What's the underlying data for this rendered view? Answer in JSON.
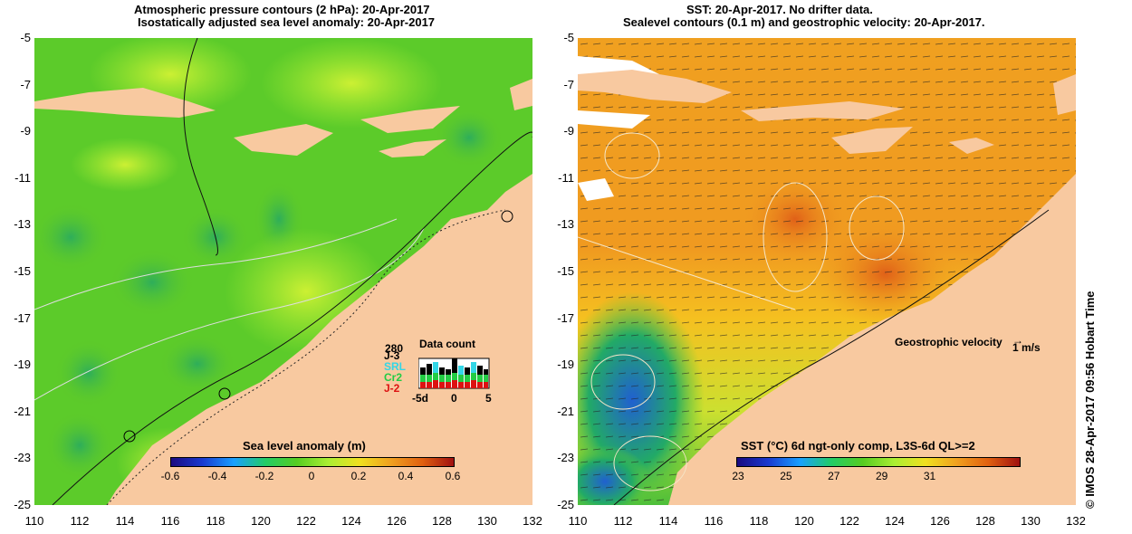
{
  "left_panel": {
    "title_line1": "Atmospheric pressure contours (2 hPa): 20-Apr-2017",
    "title_line2": "Isostatically adjusted sea level anomaly: 20-Apr-2017",
    "colorbar": {
      "label": "Sea level anomaly (m)",
      "ticks": [
        "-0.6",
        "-0.4",
        "-0.2",
        "0",
        "0.2",
        "0.4",
        "0.6"
      ]
    },
    "data_count": {
      "title": "Data count",
      "max_value": "280",
      "series": [
        {
          "name": "J-3",
          "color": "#000000"
        },
        {
          "name": "SRL",
          "color": "#33d6e6"
        },
        {
          "name": "Cr2",
          "color": "#22cc44"
        },
        {
          "name": "J-2",
          "color": "#dd1111"
        }
      ],
      "axis_ticks": [
        "-5d",
        "0",
        "5"
      ]
    }
  },
  "right_panel": {
    "title_line1": "SST: 20-Apr-2017. No drifter data.",
    "title_line2": "Sealevel contours (0.1 m) and geostrophic velocity: 20-Apr-2017.",
    "colorbar": {
      "label": "SST (°C) 6d ngt-only comp, L3S-6d QL>=2",
      "ticks": [
        "23",
        "25",
        "27",
        "29",
        "31"
      ]
    },
    "velocity_legend": {
      "label": "Geostrophic velocity",
      "scale": "1 m/s"
    }
  },
  "axes": {
    "y_ticks": [
      "-5",
      "-7",
      "-9",
      "-11",
      "-13",
      "-15",
      "-17",
      "-19",
      "-21",
      "-23",
      "-25"
    ],
    "x_ticks": [
      "110",
      "112",
      "114",
      "116",
      "118",
      "120",
      "122",
      "124",
      "126",
      "128",
      "130",
      "132"
    ]
  },
  "side_caption": "© IMOS 28-Apr-2017 09:56 Hobart Time",
  "colors": {
    "land": "#f8c9a0",
    "sla_green": "#66cc22",
    "sla_light": "#aaee33",
    "sst_orange": "#f0a020",
    "sst_yellow": "#f5d020"
  }
}
